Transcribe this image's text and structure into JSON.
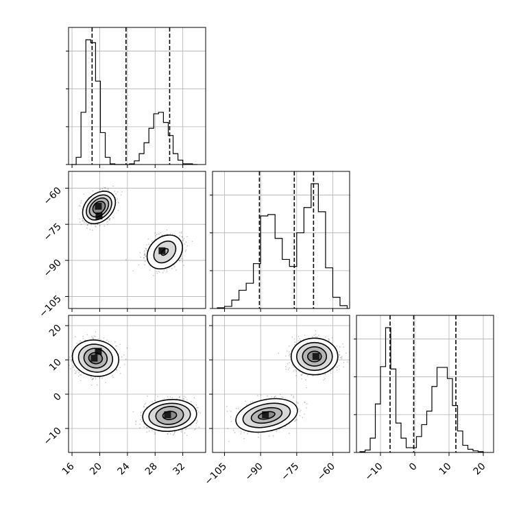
{
  "chart_data": {
    "type": "corner",
    "parameters": [
      {
        "ticks": [
          16,
          20,
          24,
          28,
          32
        ],
        "range": [
          15.5,
          35.3
        ]
      },
      {
        "ticks": [
          -60,
          -75,
          -90,
          -105
        ],
        "range": [
          -110,
          -53
        ]
      },
      {
        "ticks": [
          20,
          10,
          0,
          -10
        ],
        "range": [
          -17,
          23
        ]
      }
    ],
    "x_ticks": [
      [
        16,
        20,
        24,
        28,
        32
      ],
      [
        -105,
        -90,
        -75,
        -60
      ],
      [
        -10,
        0,
        10,
        20
      ]
    ],
    "y_ticks": {
      "1": [
        -60,
        -75,
        -90,
        -105
      ],
      "2": [
        20,
        10,
        0,
        -10
      ]
    },
    "histograms": [
      {
        "param": 0,
        "edges": [
          15.9,
          16.6,
          17.3,
          18.0,
          18.7,
          19.4,
          20.1,
          20.8,
          21.5,
          22.2,
          22.9,
          23.6,
          24.3,
          25.0,
          25.7,
          26.4,
          27.1,
          27.8,
          28.5,
          29.2,
          29.9,
          30.6,
          31.3,
          32.0,
          32.7,
          33.4,
          34.1
        ],
        "counts": [
          0,
          10,
          72,
          172,
          168,
          115,
          44,
          10,
          1,
          0,
          0,
          0,
          1,
          5,
          15,
          30,
          50,
          70,
          72,
          58,
          40,
          15,
          6,
          1,
          1,
          0
        ],
        "quantiles": [
          18.9,
          23.8,
          30.1
        ]
      },
      {
        "param": 1,
        "edges": [
          -108.0,
          -105.0,
          -102.0,
          -99.0,
          -96.0,
          -93.0,
          -90.0,
          -87.0,
          -84.0,
          -81.0,
          -78.0,
          -75.0,
          -72.0,
          -69.0,
          -66.0,
          -63.0,
          -60.0,
          -57.0,
          -54.0
        ],
        "counts": [
          1,
          3,
          12,
          26,
          36,
          64,
          132,
          134,
          100,
          70,
          60,
          108,
          144,
          178,
          138,
          58,
          16,
          4
        ],
        "quantiles": [
          -90.5,
          -76.0,
          -68.0
        ]
      },
      {
        "param": 2,
        "edges": [
          -16.0,
          -14.5,
          -13.0,
          -11.5,
          -10.0,
          -8.5,
          -7.0,
          -5.5,
          -4.0,
          -2.5,
          -1.0,
          0.5,
          2.0,
          3.5,
          5.0,
          6.5,
          8.0,
          9.5,
          11.0,
          12.5,
          14.0,
          15.5,
          17.0,
          18.5,
          20.0
        ],
        "counts": [
          1,
          3,
          18,
          61,
          108,
          157,
          105,
          37,
          18,
          6,
          6,
          20,
          35,
          52,
          83,
          107,
          107,
          93,
          59,
          27,
          9,
          4,
          2,
          1
        ],
        "quantiles": [
          -7.2,
          -0.3,
          12.0
        ]
      }
    ],
    "pair_plots": [
      {
        "x": 0,
        "y": 1,
        "clusters": [
          {
            "center": [
              19.9,
              -68.0
            ],
            "contours": [
              [
                1.0,
                2.2,
                44
              ],
              [
                1.6,
                3.2,
                44
              ],
              [
                2.1,
                4.3,
                44
              ],
              [
                2.7,
                5.6,
                44
              ]
            ],
            "density_peaks": [
              [
                19.8,
                -67.5
              ],
              [
                19.9,
                -71.5
              ]
            ]
          },
          {
            "center": [
              29.4,
              -86.5
            ],
            "contours": [
              [
                0.6,
                1.0,
                44
              ],
              [
                1.8,
                3.8,
                44
              ],
              [
                2.8,
                6.2,
                40
              ]
            ],
            "density_peaks": [
              [
                29.0,
                -86.0
              ]
            ]
          }
        ]
      },
      {
        "x": 0,
        "y": 2,
        "clusters": [
          {
            "center": [
              19.4,
              10.5
            ],
            "contours": [
              [
                0.8,
                2.0,
                80
              ],
              [
                1.4,
                3.4,
                80
              ],
              [
                2.0,
                5.0,
                80
              ],
              [
                2.6,
                6.8,
                80
              ]
            ],
            "density_peaks": [
              [
                19.2,
                10.5
              ],
              [
                19.8,
                12.5
              ]
            ]
          },
          {
            "center": [
              30.1,
              -6.2
            ],
            "contours": [
              [
                1.0,
                1.2,
                5
              ],
              [
                2.0,
                2.6,
                5
              ],
              [
                3.0,
                3.5,
                5
              ],
              [
                3.9,
                4.6,
                5
              ]
            ],
            "density_peaks": [
              [
                29.8,
                -6.0
              ]
            ]
          }
        ]
      },
      {
        "x": 1,
        "y": 2,
        "clusters": [
          {
            "center": [
              -67.6,
              11.0
            ],
            "contours": [
              [
                2.2,
                2.0,
                90
              ],
              [
                4.0,
                3.5,
                90
              ],
              [
                5.8,
                5.2,
                90
              ],
              [
                7.6,
                6.8,
                90
              ]
            ],
            "density_peaks": [
              [
                -67.0,
                11.0
              ]
            ]
          },
          {
            "center": [
              -87.5,
              -6.2
            ],
            "contours": [
              [
                3.5,
                1.0,
                12
              ],
              [
                6.5,
                2.1,
                12
              ],
              [
                10.0,
                3.3,
                12
              ],
              [
                13.0,
                4.6,
                12
              ]
            ],
            "density_peaks": [
              [
                -88.0,
                -6.0
              ]
            ]
          }
        ]
      }
    ]
  }
}
